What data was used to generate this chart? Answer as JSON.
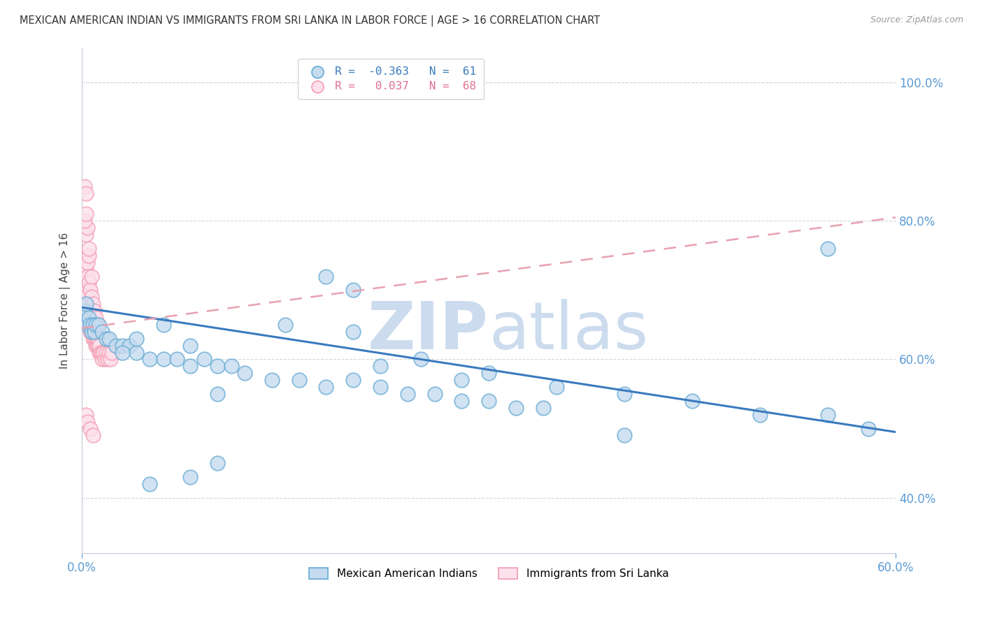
{
  "title": "MEXICAN AMERICAN INDIAN VS IMMIGRANTS FROM SRI LANKA IN LABOR FORCE | AGE > 16 CORRELATION CHART",
  "source": "Source: ZipAtlas.com",
  "ylabel": "In Labor Force | Age > 16",
  "legend_entry1": "R =  -0.363   N =  61",
  "legend_entry2": "R =   0.037   N =  68",
  "legend_label1": "Mexican American Indians",
  "legend_label2": "Immigrants from Sri Lanka",
  "blue_edge": "#6baed6",
  "blue_face": "#c6dbef",
  "blue_line": "#3a7abf",
  "pink_edge": "#f4a0b5",
  "pink_face": "#fce0eb",
  "pink_line": "#e8a0b0",
  "watermark_color": "#ccdcee",
  "xlim": [
    0.0,
    0.6
  ],
  "ylim": [
    0.32,
    1.05
  ],
  "ytick_values": [
    0.4,
    0.6,
    0.8,
    1.0
  ],
  "blue_trend_x": [
    0.0,
    0.6
  ],
  "blue_trend_y": [
    0.675,
    0.495
  ],
  "pink_trend_x": [
    0.0,
    0.6
  ],
  "pink_trend_y": [
    0.645,
    0.805
  ],
  "blue_scatter_x": [
    0.001,
    0.002,
    0.003,
    0.004,
    0.005,
    0.006,
    0.007,
    0.008,
    0.009,
    0.01,
    0.012,
    0.015,
    0.018,
    0.02,
    0.025,
    0.03,
    0.035,
    0.04,
    0.05,
    0.06,
    0.07,
    0.08,
    0.09,
    0.1,
    0.11,
    0.12,
    0.14,
    0.16,
    0.18,
    0.2,
    0.22,
    0.24,
    0.26,
    0.28,
    0.3,
    0.32,
    0.34,
    0.2,
    0.25,
    0.18,
    0.1,
    0.08,
    0.06,
    0.04,
    0.03,
    0.15,
    0.22,
    0.28,
    0.35,
    0.4,
    0.45,
    0.5,
    0.55,
    0.58,
    0.4,
    0.3,
    0.2,
    0.1,
    0.08,
    0.05,
    0.55
  ],
  "blue_scatter_y": [
    0.66,
    0.67,
    0.68,
    0.65,
    0.66,
    0.65,
    0.64,
    0.65,
    0.64,
    0.65,
    0.65,
    0.64,
    0.63,
    0.63,
    0.62,
    0.62,
    0.62,
    0.61,
    0.6,
    0.6,
    0.6,
    0.59,
    0.6,
    0.59,
    0.59,
    0.58,
    0.57,
    0.57,
    0.56,
    0.57,
    0.56,
    0.55,
    0.55,
    0.54,
    0.54,
    0.53,
    0.53,
    0.7,
    0.6,
    0.72,
    0.55,
    0.62,
    0.65,
    0.63,
    0.61,
    0.65,
    0.59,
    0.57,
    0.56,
    0.55,
    0.54,
    0.52,
    0.52,
    0.5,
    0.49,
    0.58,
    0.64,
    0.45,
    0.43,
    0.42,
    0.76
  ],
  "pink_scatter_x": [
    0.001,
    0.001,
    0.002,
    0.002,
    0.002,
    0.003,
    0.003,
    0.003,
    0.004,
    0.004,
    0.004,
    0.005,
    0.005,
    0.005,
    0.006,
    0.006,
    0.006,
    0.007,
    0.007,
    0.007,
    0.008,
    0.008,
    0.008,
    0.009,
    0.009,
    0.009,
    0.01,
    0.01,
    0.01,
    0.011,
    0.011,
    0.012,
    0.012,
    0.013,
    0.013,
    0.014,
    0.015,
    0.015,
    0.016,
    0.017,
    0.018,
    0.019,
    0.02,
    0.021,
    0.022,
    0.003,
    0.004,
    0.005,
    0.003,
    0.004,
    0.002,
    0.003,
    0.004,
    0.005,
    0.006,
    0.007,
    0.008,
    0.009,
    0.01,
    0.012,
    0.002,
    0.003,
    0.005,
    0.007,
    0.003,
    0.004,
    0.006,
    0.008
  ],
  "pink_scatter_y": [
    0.69,
    0.7,
    0.68,
    0.69,
    0.7,
    0.67,
    0.68,
    0.69,
    0.66,
    0.67,
    0.68,
    0.65,
    0.66,
    0.67,
    0.64,
    0.65,
    0.66,
    0.64,
    0.65,
    0.66,
    0.63,
    0.64,
    0.65,
    0.63,
    0.64,
    0.65,
    0.62,
    0.63,
    0.64,
    0.62,
    0.63,
    0.62,
    0.63,
    0.61,
    0.62,
    0.61,
    0.6,
    0.61,
    0.61,
    0.6,
    0.61,
    0.6,
    0.61,
    0.6,
    0.61,
    0.73,
    0.74,
    0.75,
    0.78,
    0.79,
    0.8,
    0.81,
    0.72,
    0.71,
    0.7,
    0.69,
    0.68,
    0.67,
    0.66,
    0.65,
    0.85,
    0.84,
    0.76,
    0.72,
    0.52,
    0.51,
    0.5,
    0.49
  ]
}
